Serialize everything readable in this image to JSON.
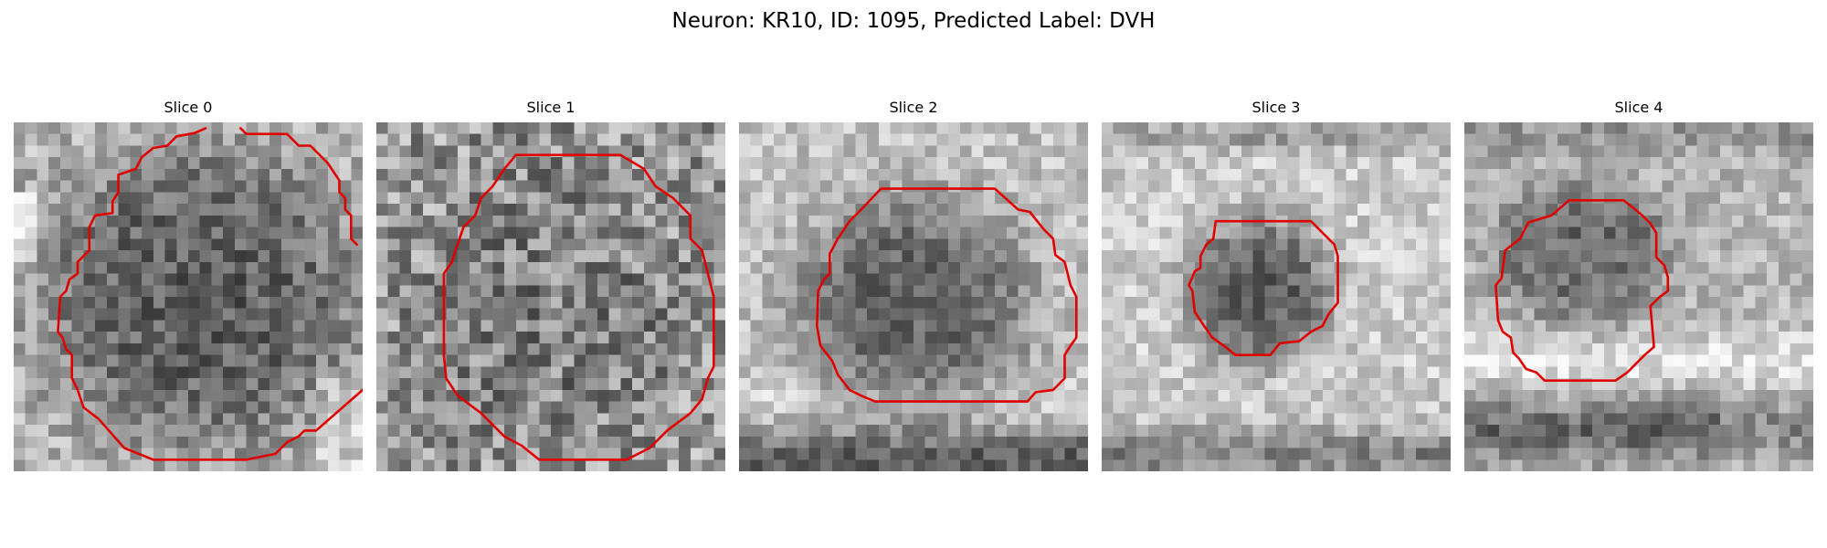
{
  "figure": {
    "title": "Neuron: KR10, ID: 1095, Predicted Label: DVH"
  },
  "contour_color": "#e00000",
  "panels": [
    {
      "title": "Slice 0"
    },
    {
      "title": "Slice 1"
    },
    {
      "title": "Slice 2"
    },
    {
      "title": "Slice 3"
    },
    {
      "title": "Slice 4"
    }
  ]
}
